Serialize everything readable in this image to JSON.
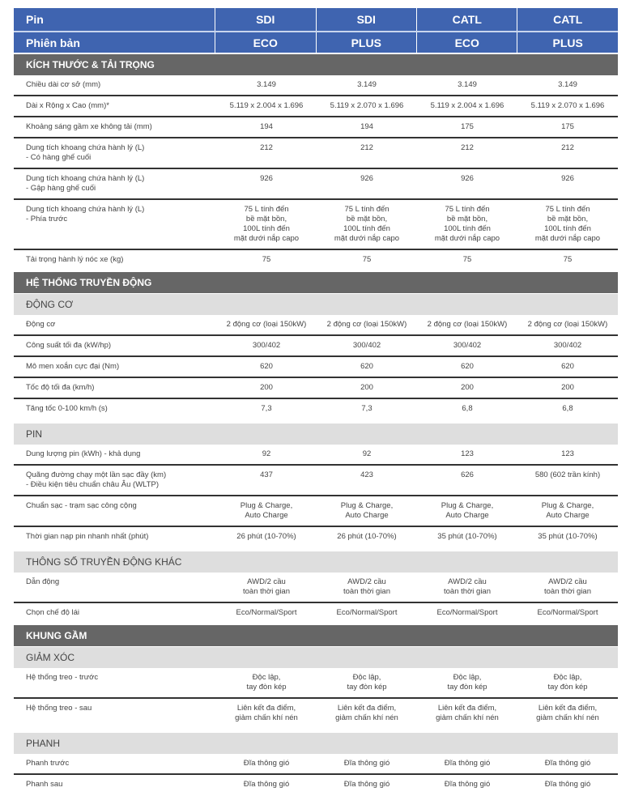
{
  "header": {
    "pin_label": "Pin",
    "version_label": "Phiên bản",
    "pins": [
      "SDI",
      "SDI",
      "CATL",
      "CATL"
    ],
    "versions": [
      "ECO",
      "PLUS",
      "ECO",
      "PLUS"
    ]
  },
  "colors": {
    "header_bg": "#3f64b0",
    "section_bg": "#666666",
    "subsection_bg": "#dedede"
  },
  "sections": [
    {
      "title": "KÍCH THƯỚC & TẢI TRỌNG",
      "groups": [
        {
          "title": "",
          "rows": [
            {
              "label": "Chiều dài cơ sở (mm)",
              "values": [
                "3.149",
                "3.149",
                "3.149",
                "3.149"
              ]
            },
            {
              "label": "Dài x Rộng x Cao (mm)*",
              "values": [
                "5.119 x 2.004 x 1.696",
                "5.119 x 2.070 x 1.696",
                "5.119 x 2.004 x 1.696",
                "5.119 x 2.070 x 1.696"
              ]
            },
            {
              "label": "Khoảng sáng gầm xe không tải (mm)",
              "values": [
                "194",
                "194",
                "175",
                "175"
              ]
            },
            {
              "label": "Dung tích khoang chứa hành lý (L)\n- Có hàng ghế cuối",
              "values": [
                "212",
                "212",
                "212",
                "212"
              ]
            },
            {
              "label": "Dung tích khoang chứa hành lý (L)\n- Gập hàng ghế cuối",
              "values": [
                "926",
                "926",
                "926",
                "926"
              ]
            },
            {
              "label": "Dung tích khoang chứa hành lý (L)\n- Phía trước",
              "values": [
                "75 L tính đến\nbề mặt bồn,\n100L tính đến\nmặt dưới nắp capo",
                "75 L tính đến\nbề mặt bồn,\n100L tính đến\nmặt dưới nắp capo",
                "75 L tính đến\nbề mặt bồn,\n100L tính đến\nmặt dưới nắp capo",
                "75 L tính đến\nbề mặt bồn,\n100L tính đến\nmặt dưới nắp capo"
              ]
            },
            {
              "label": "Tải trọng hành lý nóc xe (kg)",
              "values": [
                "75",
                "75",
                "75",
                "75"
              ]
            }
          ]
        }
      ]
    },
    {
      "title": "HỆ THỐNG TRUYỀN ĐỘNG",
      "groups": [
        {
          "title": "ĐỘNG CƠ",
          "rows": [
            {
              "label": "Động cơ",
              "values": [
                "2 động cơ (loại 150kW)",
                "2 động cơ (loại 150kW)",
                "2 động cơ (loại 150kW)",
                "2 động cơ (loại 150kW)"
              ]
            },
            {
              "label": "Công suất tối đa (kW/hp)",
              "values": [
                "300/402",
                "300/402",
                "300/402",
                "300/402"
              ]
            },
            {
              "label": "Mô men xoắn cực đại (Nm)",
              "values": [
                "620",
                "620",
                "620",
                "620"
              ]
            },
            {
              "label": "Tốc độ tối đa (km/h)",
              "values": [
                "200",
                "200",
                "200",
                "200"
              ]
            },
            {
              "label": "Tăng tốc 0-100 km/h (s)",
              "values": [
                "7,3",
                "7,3",
                "6,8",
                "6,8"
              ]
            }
          ]
        },
        {
          "title": "PIN",
          "rows": [
            {
              "label": "Dung lượng pin (kWh) - khả dụng",
              "values": [
                "92",
                "92",
                "123",
                "123"
              ]
            },
            {
              "label": "Quãng đường chạy một lần sạc đầy (km)\n- Điều kiện tiêu chuẩn châu Âu (WLTP)",
              "values": [
                "437",
                "423",
                "626",
                "580 (602 trần kính)"
              ]
            },
            {
              "label": "Chuẩn sạc - trạm sạc công cộng",
              "values": [
                "Plug & Charge,\nAuto Charge",
                "Plug & Charge,\nAuto Charge",
                "Plug & Charge,\nAuto Charge",
                "Plug & Charge,\nAuto Charge"
              ]
            },
            {
              "label": "Thời gian nạp pin nhanh nhất (phút)",
              "values": [
                "26 phút (10-70%)",
                "26 phút (10-70%)",
                "35 phút (10-70%)",
                "35 phút (10-70%)"
              ]
            }
          ]
        },
        {
          "title": "THÔNG SỐ TRUYỀN ĐỘNG KHÁC",
          "rows": [
            {
              "label": "Dẫn động",
              "values": [
                "AWD/2 cầu\ntoàn thời gian",
                "AWD/2 cầu\ntoàn thời gian",
                "AWD/2 cầu\ntoàn thời gian",
                "AWD/2 cầu\ntoàn thời gian"
              ]
            },
            {
              "label": "Chọn chế độ lái",
              "values": [
                "Eco/Normal/Sport",
                "Eco/Normal/Sport",
                "Eco/Normal/Sport",
                "Eco/Normal/Sport"
              ]
            }
          ]
        }
      ]
    },
    {
      "title": "KHUNG GẦM",
      "groups": [
        {
          "title": "GIẢM XÓC",
          "rows": [
            {
              "label": "Hệ thống treo - trước",
              "values": [
                "Độc lập,\ntay đòn kép",
                "Độc lập,\ntay đòn kép",
                "Độc lập,\ntay đòn kép",
                "Độc lập,\ntay đòn kép"
              ]
            },
            {
              "label": "Hệ thống treo - sau",
              "values": [
                "Liên kết đa điểm,\ngiảm chấn khí nén",
                "Liên kết đa điểm,\ngiảm chấn khí nén",
                "Liên kết đa điểm,\ngiảm chấn khí nén",
                "Liên kết đa điểm,\ngiảm chấn khí nén"
              ]
            }
          ]
        },
        {
          "title": "PHANH",
          "rows": [
            {
              "label": "Phanh trước",
              "values": [
                "Đĩa thông gió",
                "Đĩa thông gió",
                "Đĩa thông gió",
                "Đĩa thông gió"
              ]
            },
            {
              "label": "Phanh sau",
              "values": [
                "Đĩa thông gió",
                "Đĩa thông gió",
                "Đĩa thông gió",
                "Đĩa thông gió"
              ]
            }
          ]
        }
      ]
    }
  ]
}
